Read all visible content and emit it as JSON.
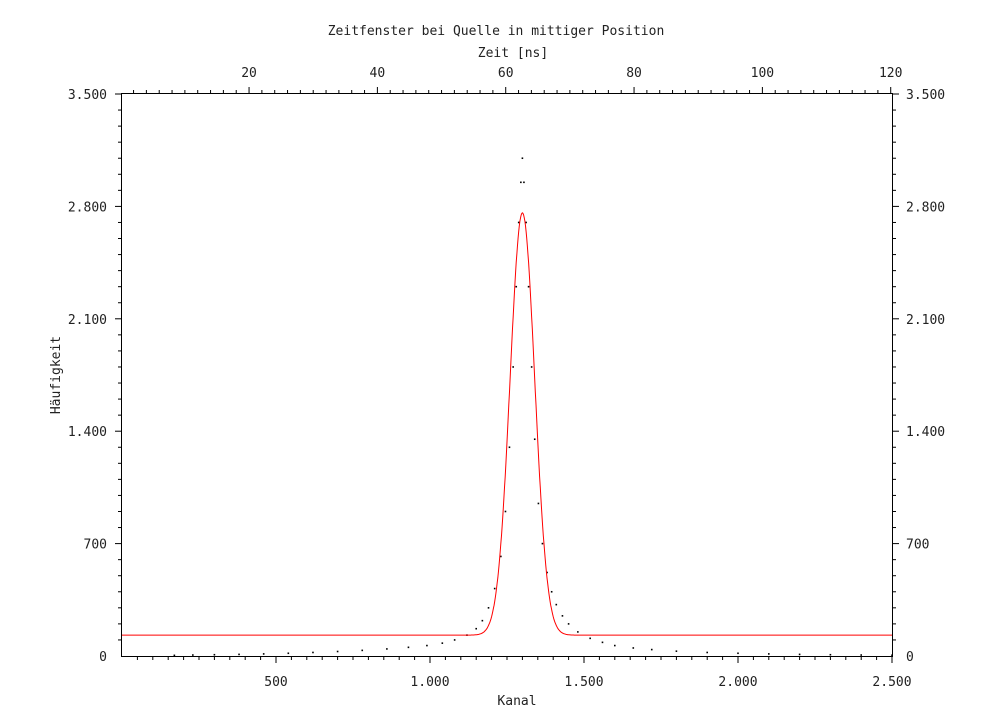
{
  "chart_data": {
    "type": "scatter",
    "title": "Zeitfenster bei Quelle in mittiger Position",
    "xlabel": "Kanal",
    "x2label": "Zeit [ns]",
    "ylabel": "Häufigkeit",
    "xlim": [
      0,
      2500
    ],
    "ylim": [
      0,
      3500
    ],
    "x2lim": [
      0.2,
      120.2
    ],
    "x_ticks": [
      500,
      1000,
      1500,
      2000,
      2500
    ],
    "x_tick_labels": [
      "500",
      "1.000",
      "1.500",
      "2.000",
      "2.500"
    ],
    "x2_ticks": [
      20,
      40,
      60,
      80,
      100,
      120
    ],
    "x2_tick_labels": [
      "20",
      "40",
      "60",
      "80",
      "100",
      "120"
    ],
    "y_ticks": [
      0,
      700,
      1400,
      2100,
      2800,
      3500
    ],
    "y_tick_labels": [
      "0",
      "700",
      "1.400",
      "2.100",
      "2.800",
      "3.500"
    ],
    "grid": false,
    "colors": {
      "data": "#000000",
      "fit": "#ff0000",
      "axes": "#000000"
    },
    "series": [
      {
        "kind": "points",
        "x": [
          170,
          230,
          300,
          380,
          460,
          540,
          620,
          700,
          780,
          860,
          930,
          990,
          1040,
          1080,
          1120,
          1150,
          1170,
          1190,
          1210,
          1230,
          1245,
          1258,
          1270,
          1280,
          1288,
          1295,
          1300,
          1305,
          1312,
          1320,
          1330,
          1340,
          1352,
          1365,
          1380,
          1395,
          1410,
          1430,
          1450,
          1480,
          1520,
          1560,
          1600,
          1660,
          1720,
          1800,
          1900,
          2000,
          2100,
          2200,
          2300,
          2400,
          2500
        ],
        "y": [
          4,
          6,
          8,
          10,
          13,
          17,
          22,
          28,
          35,
          44,
          54,
          65,
          80,
          100,
          130,
          170,
          220,
          300,
          420,
          620,
          900,
          1300,
          1800,
          2300,
          2700,
          2950,
          3100,
          2950,
          2700,
          2300,
          1800,
          1350,
          950,
          700,
          520,
          400,
          320,
          250,
          200,
          150,
          110,
          85,
          65,
          50,
          40,
          30,
          22,
          17,
          13,
          10,
          8,
          6,
          5
        ]
      },
      {
        "kind": "fit",
        "baseline": 130,
        "peak_x": 1300,
        "peak_y": 2760,
        "sigma": 40
      }
    ]
  }
}
